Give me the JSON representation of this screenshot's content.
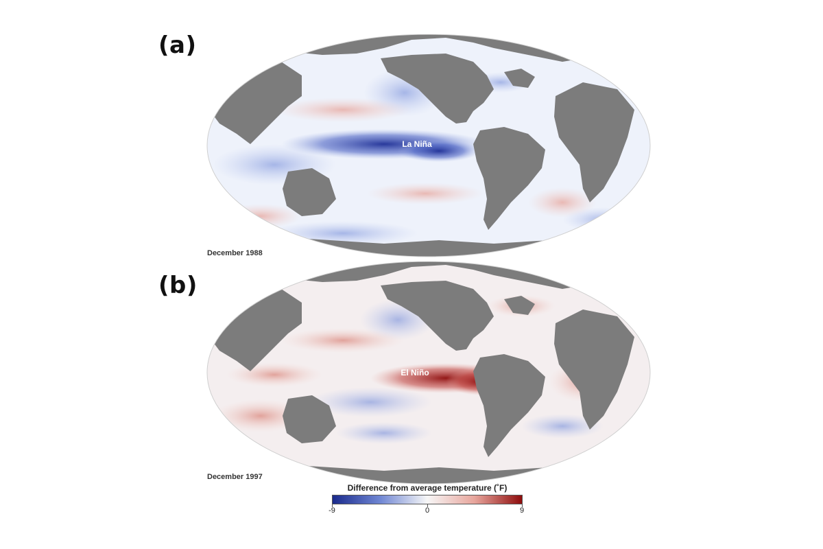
{
  "panels": [
    {
      "label": "(a)",
      "date": "December 1988",
      "annotation": "La Niña",
      "pattern": "cool",
      "map_color": "#2c3e9e"
    },
    {
      "label": "(b)",
      "date": "December 1997",
      "annotation": "El Niño",
      "pattern": "warm",
      "map_color": "#9e0f0f"
    }
  ],
  "legend": {
    "title": "Difference from average temperature (˚F)",
    "min_label": "-9",
    "mid_label": "0",
    "max_label": "9",
    "colors": [
      "#1a2a8c",
      "#6f86d3",
      "#f7f7f7",
      "#e7a59c",
      "#8e0c0c"
    ]
  },
  "colors": {
    "land": "#7c7c7c",
    "ocean_base": "#eef2fb",
    "outline": "#cfcfcf"
  }
}
